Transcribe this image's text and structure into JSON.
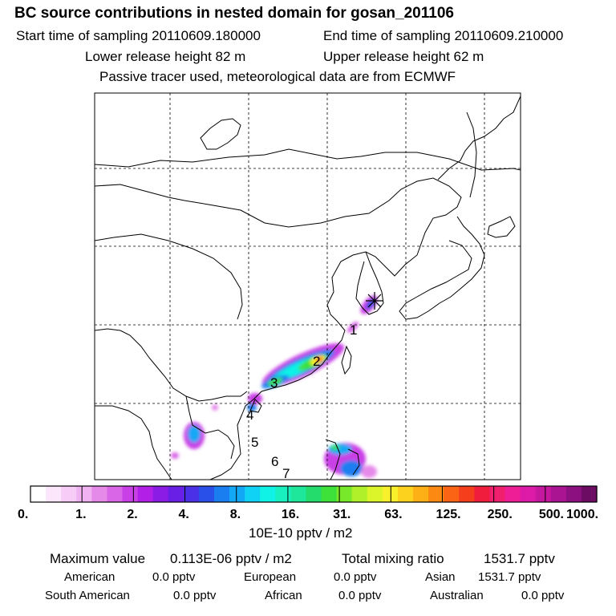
{
  "header": {
    "title": "BC  source contributions in nested domain for gosan_201106",
    "start_time": "Start time of sampling 20110609.180000",
    "end_time": "End time of sampling 20110609.210000",
    "lower_release": "Lower release height   82 m",
    "upper_release": "Upper release height   62 m",
    "tracer_note": "Passive tracer used, meteorological data are from ECMWF"
  },
  "chart_data": {
    "type": "heatmap",
    "title": "BC  source contributions in nested domain for gosan_201106",
    "colorbar": {
      "tick_labels": [
        "0.",
        "1.",
        "2.",
        "4.",
        "8.",
        "16.",
        "31.",
        "63.",
        "125.",
        "250.",
        "500.",
        "1000."
      ],
      "unit": "10E-10 pptv / m2",
      "colors": [
        "#ffffff",
        "#fbe6fb",
        "#f7cdf7",
        "#f0b2f0",
        "#e68ae9",
        "#d966e6",
        "#c940e6",
        "#b21fe6",
        "#8a1ce6",
        "#6a1fe6",
        "#4a30e6",
        "#2a50ea",
        "#1a7ef0",
        "#12a8f5",
        "#0fd2f5",
        "#10f2e6",
        "#18f0c0",
        "#1ee69a",
        "#24dc6c",
        "#3ee03a",
        "#78e82a",
        "#b0f02a",
        "#dcf52a",
        "#f8f02a",
        "#fcd21e",
        "#fcb016",
        "#fc8a12",
        "#fa6414",
        "#f53e1c",
        "#f01e3c",
        "#f0206e",
        "#ee1e96",
        "#de1aa8",
        "#c6189e",
        "#aa1492",
        "#8c1080",
        "#6c0c62"
      ]
    },
    "trajectory_labels": [
      "1",
      "2",
      "3",
      "4",
      "5",
      "6",
      "7"
    ],
    "grid": true,
    "colors": {
      "coast": "#000000",
      "grid": "#000000",
      "frame": "#000000"
    }
  },
  "stats": {
    "max_label": "Maximum value",
    "max_value": "0.113E-06 pptv / m2",
    "total_label": "Total mixing ratio",
    "total_value": "1531.7 pptv",
    "regions": [
      {
        "name": "American",
        "value": "0.0 pptv"
      },
      {
        "name": "European",
        "value": "0.0 pptv"
      },
      {
        "name": "Asian",
        "value": "1531.7 pptv"
      },
      {
        "name": "South American",
        "value": "0.0 pptv"
      },
      {
        "name": "African",
        "value": "0.0 pptv"
      },
      {
        "name": "Australian",
        "value": "0.0 pptv"
      }
    ]
  }
}
